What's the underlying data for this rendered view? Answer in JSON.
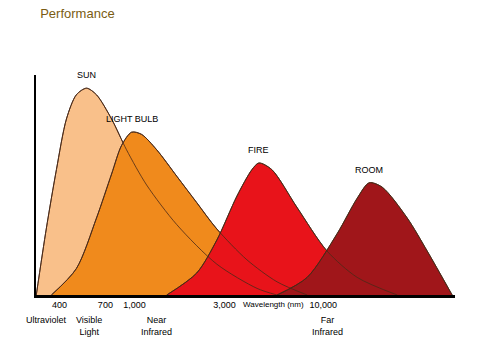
{
  "chart_data": {
    "type": "area",
    "title": "Performance",
    "x_label": "Wavelength (nm)",
    "log": "x",
    "grid": false,
    "tick_labels": "x",
    "xlim": [
      300,
      50000
    ],
    "xticks": [
      400,
      700,
      {
        "value": 1000,
        "label": "1,000"
      },
      {
        "value": 3000,
        "label": "3,000"
      },
      {
        "value": 10000,
        "label": "10,000"
      }
    ],
    "ylim": [
      0,
      100
    ],
    "series": [
      {
        "name": "SUN",
        "color": "#f9c08a",
        "x": [
          301,
          340,
          385,
          435,
          491,
          556,
          628,
          755,
          906,
          1158,
          1673,
          2730,
          4460,
          5690
        ],
        "values": [
          0,
          30,
          57,
          80,
          91,
          94,
          91,
          80,
          66,
          50,
          32,
          14,
          3,
          0
        ]
      },
      {
        "name": "LIGHT BULB",
        "color": "#f08a1c",
        "x": [
          362,
          491,
          628,
          755,
          853,
          964,
          1089,
          1310,
          1673,
          2135,
          2730,
          3940,
          5690,
          8220
        ],
        "values": [
          0,
          12,
          35,
          55,
          68,
          74,
          73,
          66,
          54,
          42,
          30,
          16,
          6,
          0
        ]
      },
      {
        "name": "FIRE",
        "color": "#e8131a",
        "x": [
          1480,
          2135,
          2730,
          3490,
          4190,
          4560,
          5340,
          7240,
          10480,
          15150,
          24700
        ],
        "values": [
          0,
          10,
          25,
          45,
          57,
          60,
          57,
          40,
          20,
          8,
          0
        ]
      },
      {
        "name": "ROOM",
        "color": "#a0161a",
        "x": [
          5690,
          8220,
          11880,
          15150,
          17530,
          20560,
          27900,
          35600,
          48300
        ],
        "values": [
          0,
          8,
          28,
          44,
          51,
          49,
          35,
          20,
          0
        ]
      }
    ],
    "annotations": [
      {
        "text": "Ultraviolet",
        "x": 340
      },
      {
        "text": "Visible Light",
        "x": 570
      },
      {
        "text": "Near Infrared",
        "x": 1310
      },
      {
        "text": "Far Infrared",
        "x": 10480
      }
    ]
  }
}
